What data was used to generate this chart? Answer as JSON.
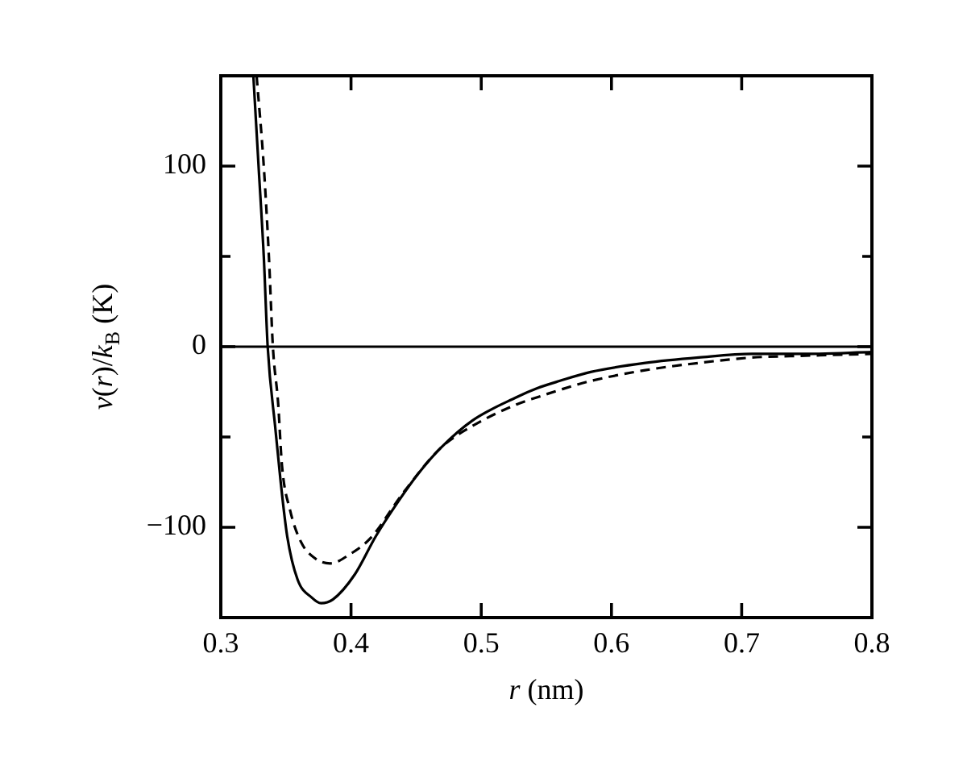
{
  "chart_data": {
    "type": "line",
    "xlabel": "r (nm)",
    "ylabel": "v(r)/k$_{B}$ (K)",
    "xlim": [
      0.3,
      0.8
    ],
    "xticks": [
      0.3,
      0.4,
      0.5,
      0.6,
      0.7,
      0.8
    ],
    "ylim": [
      -150,
      150
    ],
    "yticks": [
      {
        "value": -100,
        "label": "−100"
      },
      {
        "value": -50,
        "label": null
      },
      0,
      {
        "value": 50,
        "label": null
      },
      100
    ],
    "grid": false,
    "marker": "none",
    "ref_lines": [
      {
        "axis": "y",
        "value": 0,
        "color": "#000000"
      }
    ],
    "series": [
      {
        "color": "#000000",
        "line_style": "solid",
        "x": [
          0.325,
          0.329,
          0.333,
          0.336,
          0.342,
          0.346,
          0.351,
          0.359,
          0.37,
          0.377,
          0.386,
          0.403,
          0.419,
          0.436,
          0.452,
          0.469,
          0.493,
          0.527,
          0.543,
          0.56,
          0.584,
          0.626,
          0.667,
          0.708,
          0.749,
          0.8
        ],
        "values": [
          150,
          100,
          50,
          0,
          -46,
          -75,
          -105,
          -129,
          -139,
          -142,
          -140,
          -126,
          -105,
          -86,
          -70,
          -56,
          -41,
          -28,
          -23,
          -19,
          -14,
          -9,
          -6,
          -4,
          -4,
          -3
        ]
      },
      {
        "color": "#000000",
        "line_style": "dashed",
        "x": [
          0.3275,
          0.333,
          0.337,
          0.34,
          0.344,
          0.347,
          0.353,
          0.3615,
          0.372,
          0.384,
          0.399,
          0.415,
          0.44,
          0.469,
          0.493,
          0.527,
          0.543,
          0.56,
          0.584,
          0.626,
          0.667,
          0.708,
          0.749,
          0.8
        ],
        "values": [
          150,
          100,
          49,
          0,
          -31,
          -66,
          -90,
          -108,
          -117,
          -120,
          -115,
          -106,
          -81,
          -56,
          -44,
          -32,
          -28,
          -24,
          -19,
          -13,
          -9,
          -6,
          -5,
          -4
        ]
      }
    ]
  }
}
